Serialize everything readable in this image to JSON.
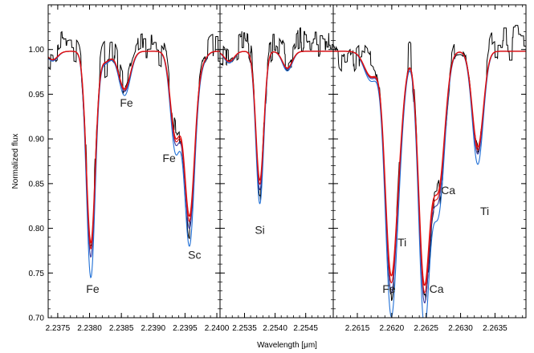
{
  "chart_data": {
    "type": "line",
    "ylabel": "Normalized flux",
    "xlabel": "Wavelength [μm]",
    "ylim": [
      0.7,
      1.05
    ],
    "yticks": [
      "0.70",
      "0.75",
      "0.80",
      "0.85",
      "0.90",
      "0.95",
      "1.00"
    ],
    "series_colors": {
      "observed": "#000000",
      "model_a": "#1f6fd6",
      "model_b": "#3a3aa0",
      "model_c": "#e01010"
    },
    "panels": [
      {
        "xlim": [
          2.23735,
          2.24005
        ],
        "xticks": [
          "2.2375",
          "2.2380",
          "2.2385",
          "2.2390",
          "2.2395",
          "2.2400"
        ],
        "lines": [
          {
            "center": 2.23802,
            "depth": 0.23,
            "width": 7e-05
          },
          {
            "center": 2.23855,
            "depth": 0.045,
            "width": 9e-05
          },
          {
            "center": 2.23935,
            "depth": 0.1,
            "width": 8e-05
          },
          {
            "center": 2.23957,
            "depth": 0.195,
            "width": 8e-05
          },
          {
            "center": 2.23975,
            "depth": 0.012,
            "width": 8e-05
          },
          {
            "center": 2.23742,
            "depth": 0.01,
            "width": 8e-05
          },
          {
            "center": 2.23825,
            "depth": 0.012,
            "width": 8e-05
          }
        ],
        "annotations": [
          {
            "text": "Fe",
            "x": 2.23805,
            "y": 0.728
          },
          {
            "text": "Fe",
            "x": 2.23858,
            "y": 0.936
          },
          {
            "text": "Fe",
            "x": 2.23925,
            "y": 0.874
          },
          {
            "text": "Sc",
            "x": 2.23965,
            "y": 0.766
          }
        ]
      },
      {
        "xlim": [
          2.2531,
          2.25495
        ],
        "xticks": [
          "2.2535",
          "2.2540",
          "2.2545"
        ],
        "lines": [
          {
            "center": 2.25375,
            "depth": 0.155,
            "width": 6.5e-05
          },
          {
            "center": 2.2542,
            "depth": 0.02,
            "width": 8e-05
          },
          {
            "center": 2.25325,
            "depth": 0.012,
            "width": 8e-05
          }
        ],
        "annotations": [
          {
            "text": "Si",
            "x": 2.25375,
            "y": 0.794
          }
        ]
      },
      {
        "xlim": [
          2.26115,
          2.26395
        ],
        "xticks": [
          "2.2615",
          "2.2620",
          "2.2625",
          "2.2630",
          "2.2635"
        ],
        "lines": [
          {
            "center": 2.26198,
            "depth": 0.24,
            "width": 8e-05
          },
          {
            "center": 2.2621,
            "depth": 0.08,
            "width": 8e-05
          },
          {
            "center": 2.26247,
            "depth": 0.27,
            "width": 8e-05
          },
          {
            "center": 2.26268,
            "depth": 0.16,
            "width": 9e-05
          },
          {
            "center": 2.26325,
            "depth": 0.115,
            "width": 8e-05
          },
          {
            "center": 2.2617,
            "depth": 0.03,
            "width": 0.0001
          }
        ],
        "annotations": [
          {
            "text": "Fe",
            "x": 2.26196,
            "y": 0.728
          },
          {
            "text": "Ti",
            "x": 2.26215,
            "y": 0.78
          },
          {
            "text": "Ca",
            "x": 2.26265,
            "y": 0.728
          },
          {
            "text": "Ca",
            "x": 2.26282,
            "y": 0.838
          },
          {
            "text": "Ti",
            "x": 2.26335,
            "y": 0.815
          }
        ]
      }
    ]
  }
}
